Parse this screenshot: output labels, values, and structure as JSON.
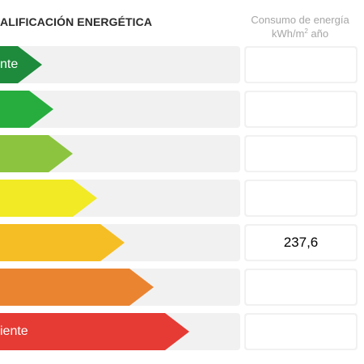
{
  "header": {
    "title": "ALIFICACIÓN ENERGÉTICA",
    "column_title_line1": "Consumo de energía",
    "column_unit_base": "kWh/m",
    "column_unit_exp": "2",
    "column_unit_rest": " año"
  },
  "rows": [
    {
      "label": "nte",
      "color": "#1e8a3c",
      "value": ""
    },
    {
      "label": "",
      "color": "#27ad3e",
      "value": ""
    },
    {
      "label": "",
      "color": "#8cc43f",
      "value": ""
    },
    {
      "label": "",
      "color": "#f1ea25",
      "value": ""
    },
    {
      "label": "",
      "color": "#f6be25",
      "value": "237,6"
    },
    {
      "label": "",
      "color": "#ea8431",
      "value": ""
    },
    {
      "label": "iente",
      "color": "#e53b34",
      "value": ""
    }
  ]
}
